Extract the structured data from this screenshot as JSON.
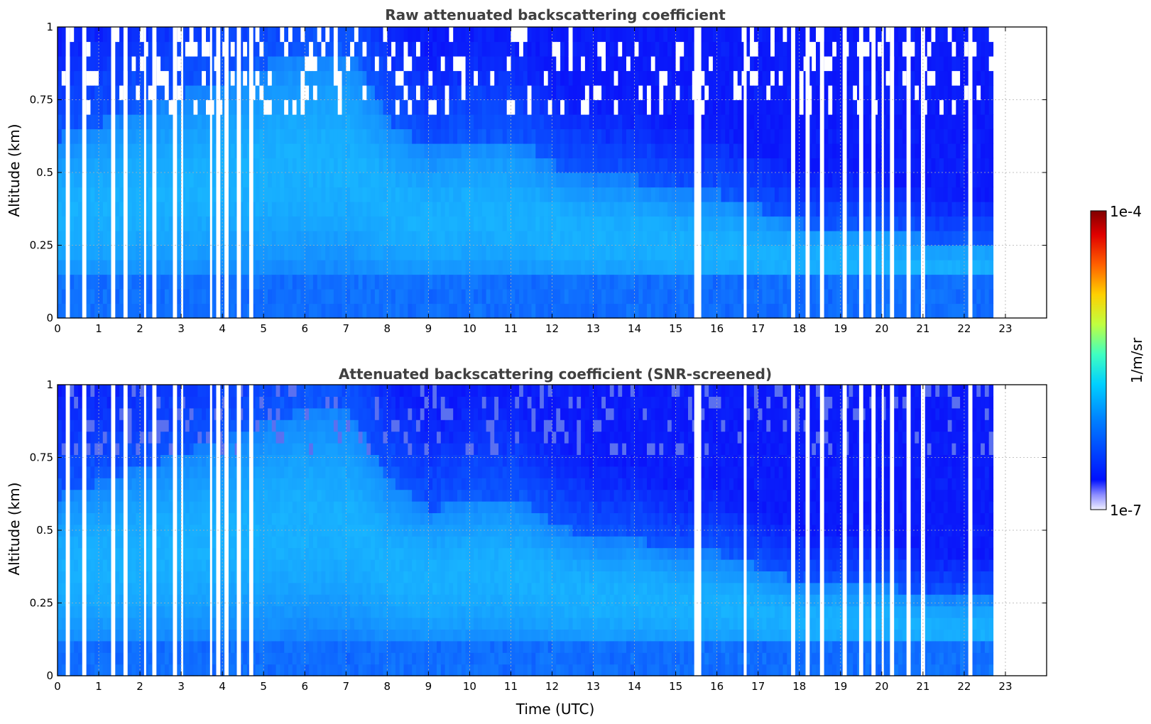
{
  "chart_data": [
    {
      "type": "heatmap",
      "title": "Raw attenuated backscattering coefficient",
      "xlabel": "",
      "ylabel": "Altitude (km)",
      "xlim": [
        0,
        24
      ],
      "ylim": [
        0,
        1
      ],
      "x_ticks": [
        0,
        1,
        2,
        3,
        4,
        5,
        6,
        7,
        8,
        9,
        10,
        11,
        12,
        13,
        14,
        15,
        16,
        17,
        18,
        19,
        20,
        21,
        22,
        23
      ],
      "x_tick_labels": [
        "0",
        "1",
        "2",
        "3",
        "4",
        "5",
        "6",
        "7",
        "8",
        "9",
        "10",
        "11",
        "12",
        "13",
        "14",
        "15",
        "16",
        "17",
        "18",
        "19",
        "20",
        "21",
        "22",
        "23"
      ],
      "y_ticks": [
        0,
        0.25,
        0.5,
        0.75,
        1
      ],
      "y_tick_labels": [
        "0",
        "0.25",
        "0.5",
        "0.75",
        "1"
      ],
      "grid": true,
      "data_extent_hours": [
        0,
        22.65
      ],
      "gaps_hours": [
        [
          0.2,
          0.3
        ],
        [
          0.6,
          0.7
        ],
        [
          1.3,
          1.4
        ],
        [
          1.6,
          1.7
        ],
        [
          2.1,
          2.15
        ],
        [
          2.3,
          2.4
        ],
        [
          2.8,
          2.9
        ],
        [
          3.0,
          3.05
        ],
        [
          3.7,
          3.75
        ],
        [
          3.85,
          3.95
        ],
        [
          4.05,
          4.15
        ],
        [
          4.35,
          4.45
        ],
        [
          4.65,
          4.75
        ],
        [
          15.45,
          15.62
        ],
        [
          16.65,
          16.72
        ],
        [
          17.8,
          17.9
        ],
        [
          18.15,
          18.25
        ],
        [
          18.5,
          18.6
        ],
        [
          19.05,
          19.15
        ],
        [
          19.45,
          19.55
        ],
        [
          19.75,
          19.85
        ],
        [
          20.0,
          20.05
        ],
        [
          20.2,
          20.3
        ],
        [
          20.6,
          20.7
        ],
        [
          20.95,
          21.05
        ],
        [
          22.1,
          22.2
        ]
      ],
      "boundary_layer_top_km": [
        [
          0,
          0.6
        ],
        [
          2,
          0.7
        ],
        [
          5,
          0.85
        ],
        [
          6,
          0.9
        ],
        [
          7,
          0.9
        ],
        [
          8,
          0.65
        ],
        [
          9,
          0.55
        ],
        [
          10,
          0.6
        ],
        [
          11,
          0.6
        ],
        [
          12,
          0.5
        ],
        [
          13,
          0.45
        ],
        [
          14,
          0.45
        ],
        [
          15,
          0.4
        ],
        [
          16,
          0.4
        ],
        [
          17,
          0.35
        ],
        [
          18,
          0.3
        ],
        [
          19,
          0.3
        ],
        [
          20,
          0.3
        ],
        [
          21,
          0.25
        ],
        [
          22,
          0.25
        ],
        [
          22.65,
          0.25
        ]
      ]
    },
    {
      "type": "heatmap",
      "title": "Attenuated backscattering coefficient (SNR-screened)",
      "xlabel": "Time (UTC)",
      "ylabel": "Altitude (km)",
      "xlim": [
        0,
        24
      ],
      "ylim": [
        0,
        1
      ],
      "x_ticks": [
        0,
        1,
        2,
        3,
        4,
        5,
        6,
        7,
        8,
        9,
        10,
        11,
        12,
        13,
        14,
        15,
        16,
        17,
        18,
        19,
        20,
        21,
        22,
        23
      ],
      "x_tick_labels": [
        "0",
        "1",
        "2",
        "3",
        "4",
        "5",
        "6",
        "7",
        "8",
        "9",
        "10",
        "11",
        "12",
        "13",
        "14",
        "15",
        "16",
        "17",
        "18",
        "19",
        "20",
        "21",
        "22",
        "23"
      ],
      "y_ticks": [
        0,
        0.25,
        0.5,
        0.75,
        1
      ],
      "y_tick_labels": [
        "0",
        "0.25",
        "0.5",
        "0.75",
        "1"
      ],
      "grid": true,
      "data_extent_hours": [
        0,
        22.65
      ]
    }
  ],
  "colorbar": {
    "label": "1/m/sr",
    "max_label": "1e-4",
    "min_label": "1e-7",
    "range": [
      1e-07,
      0.0001
    ],
    "scale": "log",
    "colormap": "jet",
    "colors": [
      "#e8e8ff",
      "#8c8cff",
      "#0010ff",
      "#0080ff",
      "#00d0ff",
      "#40ffc0",
      "#c0ff40",
      "#ffd000",
      "#ff6000",
      "#e00000",
      "#800000"
    ]
  },
  "colors": {
    "background_blue": "#0a2aff",
    "mid_blue": "#1a6cff",
    "light_blue": "#19b7ff",
    "noise_white": "#ffffff"
  }
}
